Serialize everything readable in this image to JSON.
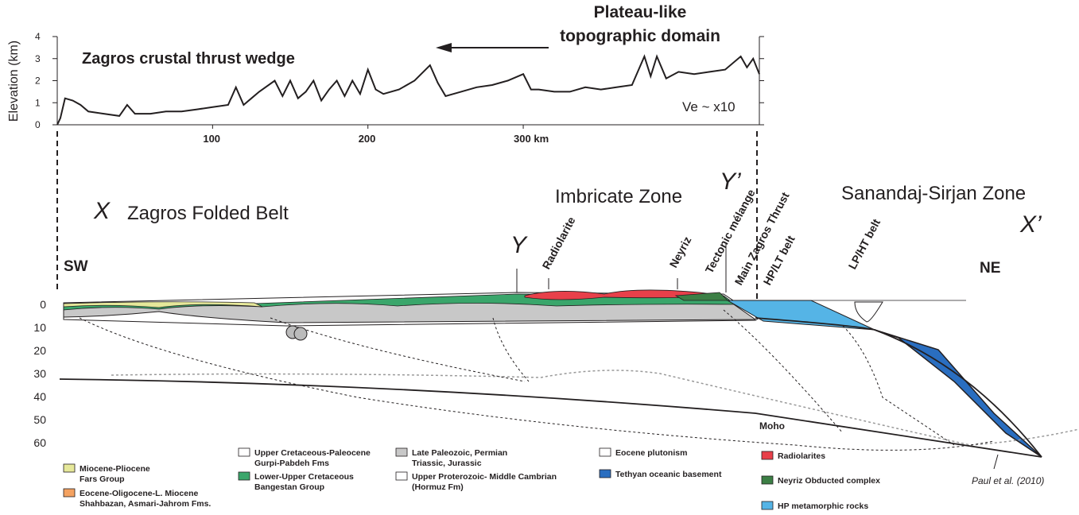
{
  "profile": {
    "y_label": "Elevation (km)",
    "ylim": [
      0,
      4
    ],
    "yticks": [
      0,
      1,
      2,
      3,
      4
    ],
    "xlim": [
      0,
      452
    ],
    "xticks": [
      100,
      200,
      {
        "value": 300,
        "label": "300 km"
      }
    ],
    "x": [
      0,
      2,
      5,
      10,
      15,
      20,
      30,
      40,
      45,
      50,
      60,
      70,
      80,
      90,
      100,
      110,
      115,
      120,
      125,
      130,
      140,
      145,
      150,
      155,
      160,
      165,
      170,
      175,
      180,
      185,
      190,
      195,
      200,
      205,
      210,
      220,
      230,
      240,
      245,
      250,
      260,
      270,
      280,
      290,
      300,
      305,
      310,
      320,
      330,
      340,
      350,
      360,
      370,
      378,
      382,
      386,
      392,
      400,
      410,
      420,
      430,
      440,
      444,
      448,
      452
    ],
    "values": [
      0,
      0.3,
      1.2,
      1.1,
      0.9,
      0.6,
      0.5,
      0.4,
      0.9,
      0.5,
      0.5,
      0.6,
      0.6,
      0.7,
      0.8,
      0.9,
      1.7,
      0.9,
      1.2,
      1.5,
      2.0,
      1.3,
      2.0,
      1.2,
      1.5,
      2.0,
      1.1,
      1.6,
      2.0,
      1.3,
      2.0,
      1.4,
      2.5,
      1.6,
      1.4,
      1.6,
      2.0,
      2.7,
      1.9,
      1.3,
      1.5,
      1.7,
      1.8,
      2.0,
      2.3,
      1.6,
      1.6,
      1.5,
      1.5,
      1.7,
      1.6,
      1.7,
      1.8,
      3.1,
      2.2,
      3.1,
      2.1,
      2.4,
      2.3,
      2.4,
      2.5,
      3.1,
      2.6,
      3.0,
      2.3
    ]
  },
  "annotations": {
    "domain_line1": "Plateau-like",
    "domain_line2": "topographic domain",
    "wedge": "Zagros crustal thrust wedge",
    "ve": "Ve ~ x10"
  },
  "section": {
    "x": "X",
    "zagros_folded_belt": "Zagros Folded Belt",
    "imbricate_zone": "Imbricate Zone",
    "y_prime": "Y’",
    "sanandaj": "Sanandaj-Sirjan Zone",
    "x_prime": "X’",
    "sw": "SW",
    "y": "Y",
    "radiolarite": "Radiolarite",
    "neyriz": "Neyriz",
    "melange": "Tectonic mélange",
    "mzt": "Main Zagros Thrust",
    "hplt": "HP/LT belt",
    "lpht": "LP/HT belt",
    "ne": "NE",
    "moho": "Moho",
    "reference": "Paul et al. (2010)",
    "depth_ticks": [
      0,
      10,
      20,
      30,
      40,
      50,
      60
    ]
  },
  "legend": [
    {
      "color": "#e6e89a",
      "lines": [
        "Miocene-Pliocene",
        "Fars Group"
      ]
    },
    {
      "color": "#f4a261",
      "lines": [
        "Eocene-Oligocene-L. Miocene",
        "Shahbazan, Asmari-Jahrom Fms."
      ]
    },
    {
      "color": "#ffffff",
      "lines": [
        "Upper Cretaceous-Paleocene",
        "Gurpi-Pabdeh Fms"
      ]
    },
    {
      "color": "#3aa66b",
      "lines": [
        "Lower-Upper Cretaceous",
        "Bangestan Group"
      ]
    },
    {
      "color": "#c8c8c8",
      "lines": [
        "Late Paleozoic, Permian",
        "Triassic, Jurassic"
      ]
    },
    {
      "color": "#ffffff",
      "lines": [
        "Upper Proterozoic- Middle Cambrian",
        "(Hormuz Fm)"
      ]
    },
    {
      "color": "#ffffff",
      "lines": [
        "Eocene plutonism"
      ]
    },
    {
      "color": "#2a6ec0",
      "lines": [
        "Tethyan oceanic basement"
      ]
    },
    {
      "color": "#e8404a",
      "lines": [
        "Radiolarites"
      ]
    },
    {
      "color": "#3c7f45",
      "lines": [
        "Neyriz Obducted complex"
      ]
    },
    {
      "color": "#55b4e6",
      "lines": [
        "HP metamorphic rocks"
      ]
    }
  ]
}
